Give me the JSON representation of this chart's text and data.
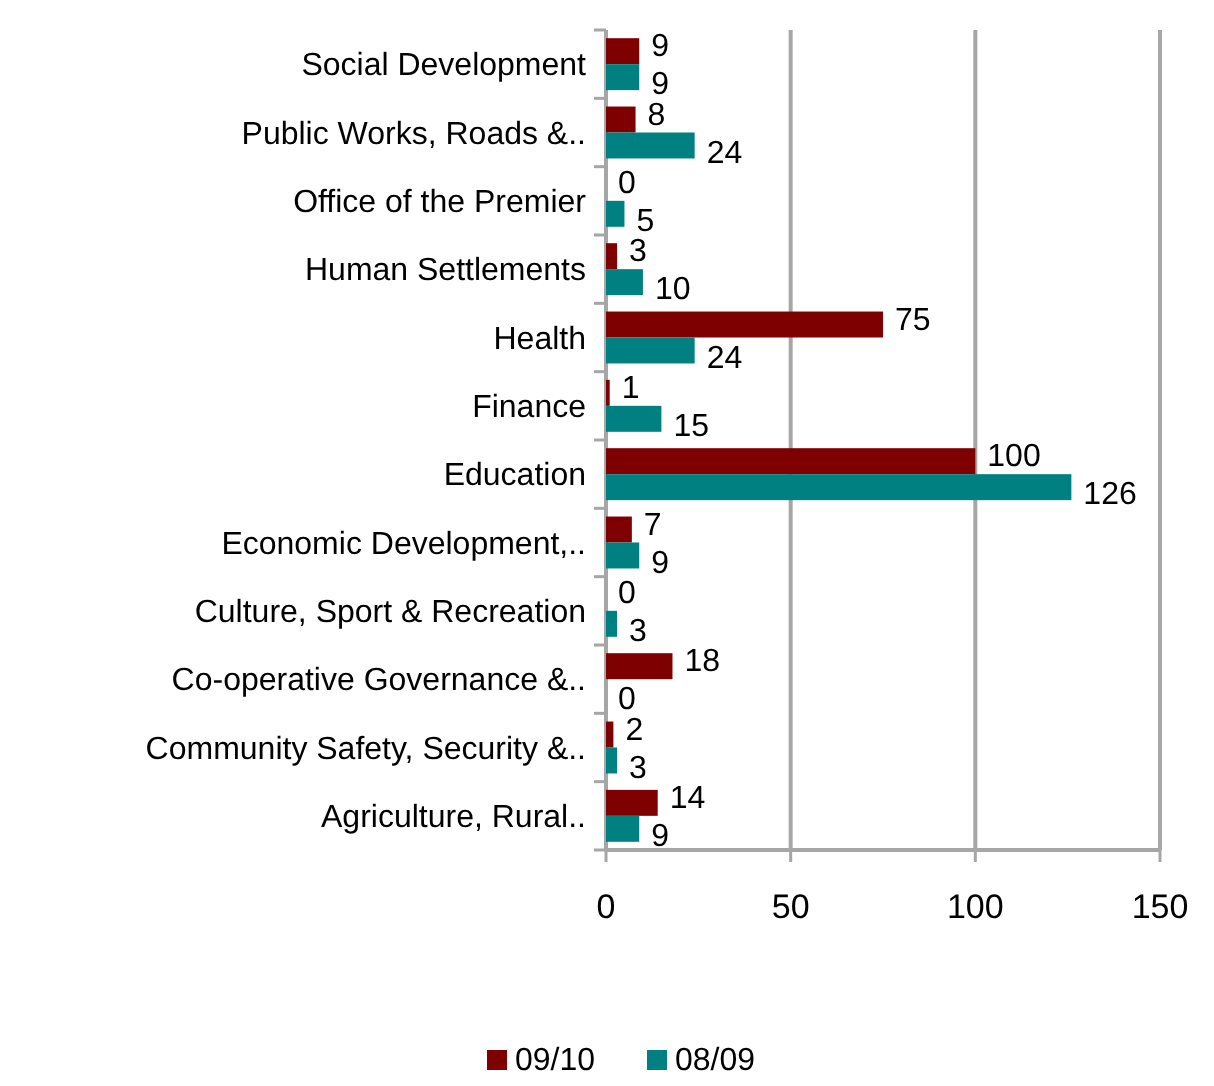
{
  "chart_data": {
    "type": "bar",
    "orientation": "horizontal",
    "categories": [
      "Social Development",
      "Public Works, Roads &..",
      "Office of the Premier",
      "Human Settlements",
      "Health",
      "Finance",
      "Education",
      "Economic Development,..",
      "Culture, Sport & Recreation",
      "Co-operative Governance &..",
      "Community Safety, Security &..",
      "Agriculture, Rural.."
    ],
    "series": [
      {
        "name": "09/10",
        "color": "#7f0000",
        "values": [
          9,
          8,
          0,
          3,
          75,
          1,
          100,
          7,
          0,
          18,
          2,
          14
        ]
      },
      {
        "name": "08/09",
        "color": "#008080",
        "values": [
          9,
          24,
          5,
          10,
          24,
          15,
          126,
          9,
          3,
          0,
          3,
          9
        ]
      }
    ],
    "xlim": [
      0,
      150
    ],
    "xticks": [
      0,
      50,
      100,
      150
    ],
    "grid": "x",
    "legend": "bottom",
    "data_labels": true
  }
}
